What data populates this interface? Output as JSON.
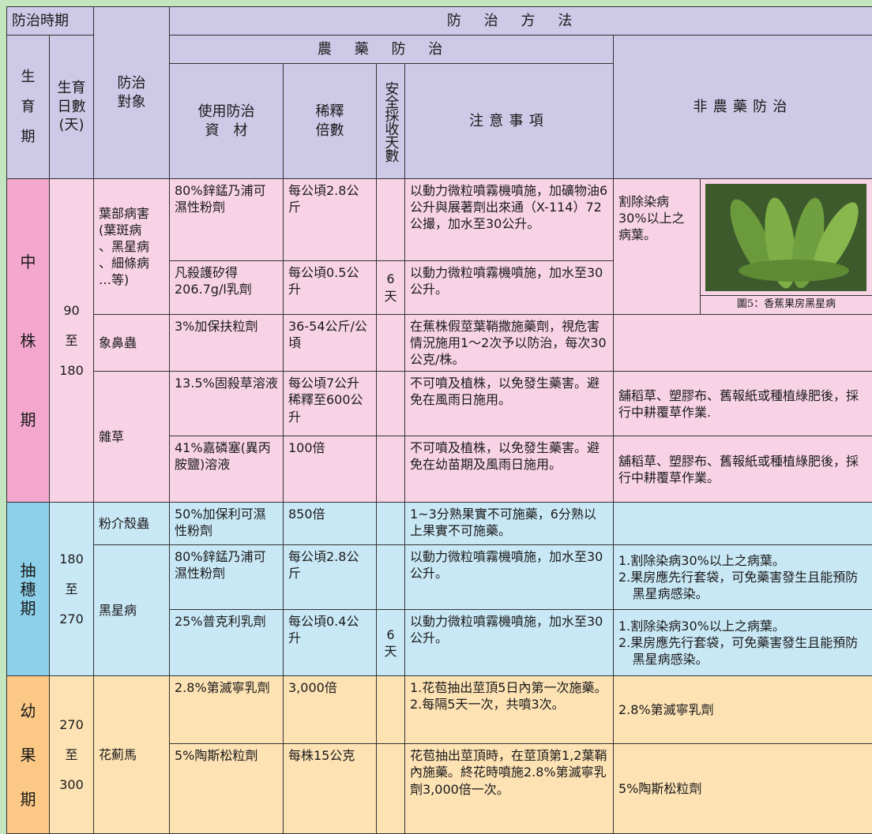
{
  "header": {
    "period": "防治時期",
    "target": "防治\n對象",
    "methods": "防治方法",
    "pesticide": "農藥防治",
    "non_pesticide": "非農藥防治",
    "stage": "生\n育\n期",
    "days": "生育\n日數\n(天)",
    "material": "使用防治\n資　材",
    "dilution": "稀釋\n倍數",
    "harvest": "安全採收天數",
    "notes": "注意事項"
  },
  "sections": [
    {
      "stage": "中\n株\n期",
      "days": "90\n至\n180",
      "targets": [
        {
          "target": "葉部病害\n(葉斑病\n、黑星病\n、細條病\n…等)",
          "non_pesticide": "割除染病30%以上之病葉。",
          "image_caption": "圖5：香蕉果房黑星病",
          "treatments": [
            {
              "material": "80%鋅錳乃浦可濕性粉劑",
              "dilution": "每公頃2.8公斤",
              "notes": "以動力微粒噴霧機噴施，加礦物油6公升與展著劑出來通（X-114）72公撮，加水至30公升。"
            },
            {
              "material": "凡殺護矽得206.7g/l乳劑",
              "dilution": "每公頃0.5公升",
              "harvest": "6\n天",
              "notes": "以動力微粒噴霧機噴施，加水至30公升。"
            }
          ]
        },
        {
          "target": "象鼻蟲",
          "treatments": [
            {
              "material": "3%加保扶粒劑",
              "dilution": "36-54公斤/公頃",
              "notes": "在蕉株假莖葉鞘撒施藥劑，視危害情況施用1～2次予以防治，每次30公克/株。"
            }
          ]
        },
        {
          "target": "雜草",
          "treatments": [
            {
              "material": "13.5%固殺草溶液",
              "dilution": "每公頃7公升稀釋至600公升",
              "notes": "不可噴及植株，以免發生藥害。避免在風雨日施用。",
              "non_pesticide": "舖稻草、塑膠布、舊報紙或種植綠肥後，採行中耕覆草作業."
            },
            {
              "material": "41%嘉磷塞(異丙胺鹽)溶液",
              "dilution": "100倍",
              "notes": "不可噴及植株，以免發生藥害。避免在幼苗期及風雨日施用。",
              "non_pesticide": "舖稻草、塑膠布、舊報紙或種植綠肥後，採行中耕覆草作業。"
            }
          ]
        }
      ]
    },
    {
      "stage": "抽\n穗\n期",
      "days": "180\n至\n270",
      "targets": [
        {
          "target": "粉介殼蟲",
          "treatments": [
            {
              "material": "50%加保利可濕性粉劑",
              "dilution": "850倍",
              "notes": "1~3分熟果實不可施藥，6分熟以上果實不可施藥。"
            }
          ]
        },
        {
          "target": "黑星病",
          "treatments": [
            {
              "material": "80%鋅錳乃浦可濕性粉劑",
              "dilution": "每公頃2.8公斤",
              "notes": "以動力微粒噴霧機噴施，加水至30公升。",
              "non_pesticide": [
                "1.割除染病30%以上之病葉。",
                "2.果房應先行套袋，可免藥害發生且能預防黑星病感染。"
              ]
            },
            {
              "material": "25%普克利乳劑",
              "dilution": "每公頃0.4公升",
              "harvest": "6\n天",
              "notes": "以動力微粒噴霧機噴施，加水至30公升。",
              "non_pesticide": [
                "1.割除染病30%以上之病葉。",
                "2.果房應先行套袋，可免藥害發生且能預防黑星病感染。"
              ]
            }
          ]
        }
      ]
    },
    {
      "stage": "幼\n果\n期",
      "days": "270\n至\n300",
      "targets": [
        {
          "target": "花薊馬",
          "treatments": [
            {
              "material": "2.8%第滅寧乳劑",
              "dilution": "3,000倍",
              "notes": [
                "1.花苞抽出莖頂5日內第一次施藥。",
                "2.每隔5天一次，共噴3次。"
              ],
              "non_pesticide": "2.8%第滅寧乳劑"
            },
            {
              "material": "5%陶斯松粒劑",
              "dilution": "每株15公克",
              "notes": "花苞抽出莖頂時，在莖頂第1,2葉鞘內施藥。終花時噴施2.8%第滅寧乳劑3,000倍一次。",
              "non_pesticide": "5%陶斯松粒劑"
            }
          ]
        }
      ]
    }
  ]
}
